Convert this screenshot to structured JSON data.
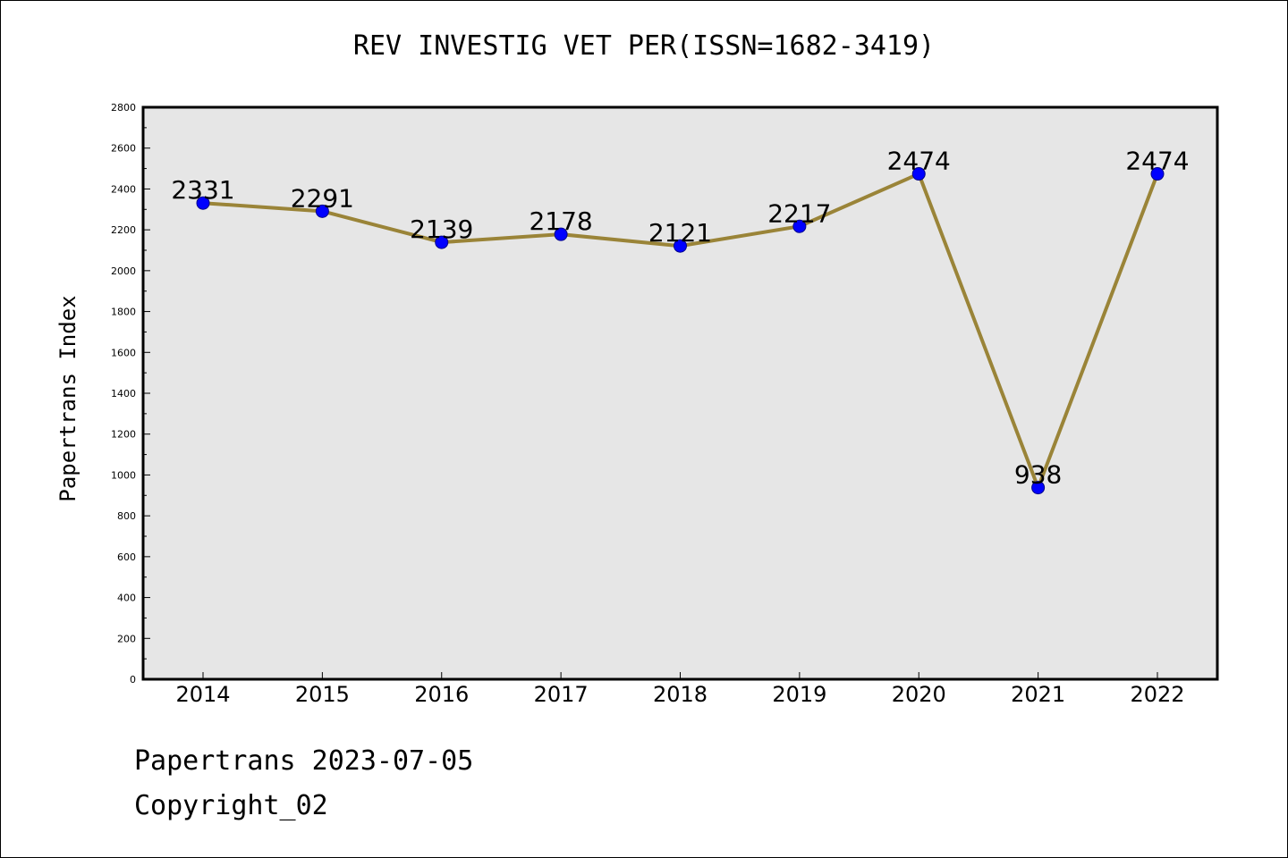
{
  "title": "REV INVESTIG VET PER(ISSN=1682-3419)",
  "footer": {
    "line1": "Papertrans 2023-07-05",
    "line2": "Copyright_02"
  },
  "colors": {
    "background": "#ffffff",
    "plot_background": "#e6e6e6",
    "line": "#9a8438",
    "marker": "#0000ff"
  },
  "chart_data": {
    "type": "line",
    "title": "REV INVESTIG VET PER(ISSN=1682-3419)",
    "xlabel": "",
    "ylabel": "Papertrans Index",
    "x": [
      "2014",
      "2015",
      "2016",
      "2017",
      "2018",
      "2019",
      "2020",
      "2021",
      "2022"
    ],
    "series": [
      {
        "values": [
          2331,
          2291,
          2139,
          2178,
          2121,
          2217,
          2474,
          938,
          2474
        ]
      }
    ],
    "data_labels": [
      "2331",
      "2291",
      "2139",
      "2178",
      "2121",
      "2217",
      "2474",
      "938",
      "2474"
    ],
    "ylim": [
      0,
      2800
    ],
    "yticks": [
      0,
      200,
      400,
      600,
      800,
      1000,
      1200,
      1400,
      1600,
      1800,
      2000,
      2200,
      2400,
      2600,
      2800
    ],
    "grid": false,
    "legend": "none"
  }
}
